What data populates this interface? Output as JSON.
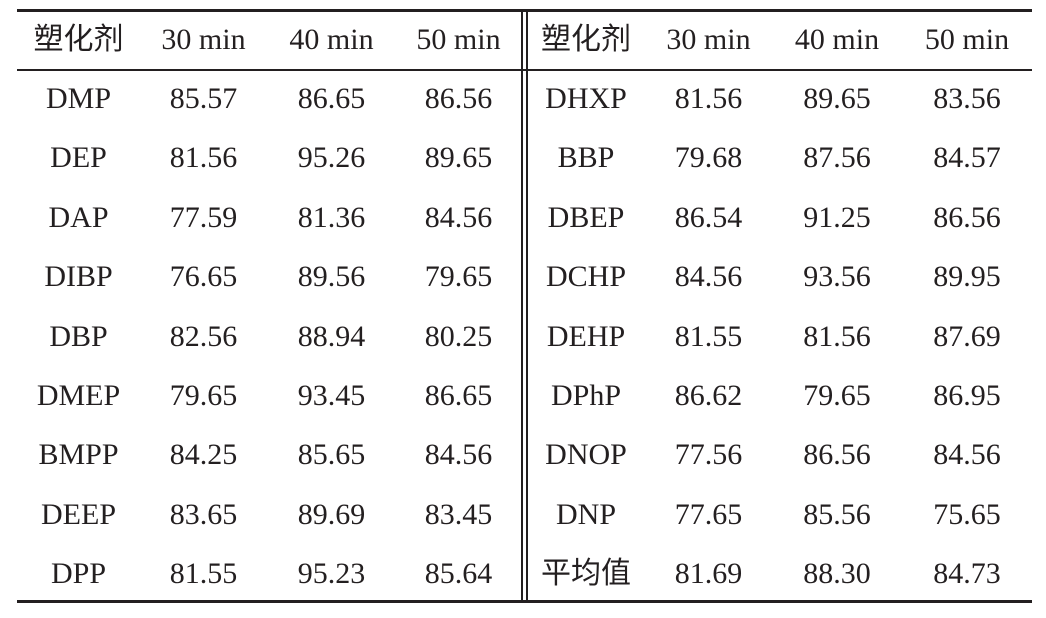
{
  "table": {
    "header": [
      "塑化剂",
      "30 min",
      "40 min",
      "50 min",
      "塑化剂",
      "30 min",
      "40 min",
      "50 min"
    ],
    "rows": [
      [
        "DMP",
        "85.57",
        "86.65",
        "86.56",
        "DHXP",
        "81.56",
        "89.65",
        "83.56"
      ],
      [
        "DEP",
        "81.56",
        "95.26",
        "89.65",
        "BBP",
        "79.68",
        "87.56",
        "84.57"
      ],
      [
        "DAP",
        "77.59",
        "81.36",
        "84.56",
        "DBEP",
        "86.54",
        "91.25",
        "86.56"
      ],
      [
        "DIBP",
        "76.65",
        "89.56",
        "79.65",
        "DCHP",
        "84.56",
        "93.56",
        "89.95"
      ],
      [
        "DBP",
        "82.56",
        "88.94",
        "80.25",
        "DEHP",
        "81.55",
        "81.56",
        "87.69"
      ],
      [
        "DMEP",
        "79.65",
        "93.45",
        "86.65",
        "DPhP",
        "86.62",
        "79.65",
        "86.95"
      ],
      [
        "BMPP",
        "84.25",
        "85.65",
        "84.56",
        "DNOP",
        "77.56",
        "86.56",
        "84.56"
      ],
      [
        "DEEP",
        "83.65",
        "89.69",
        "83.45",
        "DNP",
        "77.65",
        "85.56",
        "75.65"
      ],
      [
        "DPP",
        "81.55",
        "95.23",
        "85.64",
        "平均值",
        "81.69",
        "88.30",
        "84.73"
      ]
    ]
  }
}
